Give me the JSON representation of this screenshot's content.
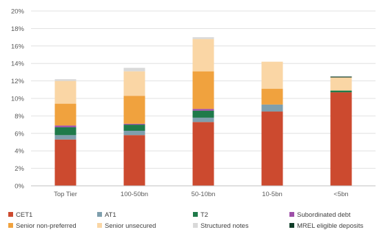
{
  "chart_data": {
    "type": "bar",
    "stacked": true,
    "title": "",
    "xlabel": "",
    "ylabel": "",
    "ylim": [
      0,
      20
    ],
    "y_tick_format": "percent",
    "y_ticks": [
      "0%",
      "2%",
      "4%",
      "6%",
      "8%",
      "10%",
      "12%",
      "14%",
      "16%",
      "18%",
      "20%"
    ],
    "categories": [
      "Top Tier",
      "100-50bn",
      "50-10bn",
      "10-5bn",
      "<5bn"
    ],
    "grid": true,
    "legend_position": "bottom",
    "series": [
      {
        "name": "CET1",
        "color": "#cc4a2f",
        "values": [
          5.3,
          5.8,
          7.3,
          8.5,
          10.7
        ]
      },
      {
        "name": "AT1",
        "color": "#7f9fad",
        "values": [
          0.5,
          0.5,
          0.5,
          0.8,
          0.0
        ]
      },
      {
        "name": "T2",
        "color": "#1f7a4a",
        "values": [
          0.9,
          0.7,
          0.8,
          0.0,
          0.2
        ]
      },
      {
        "name": "Subordinated debt",
        "color": "#9e4fa8",
        "values": [
          0.2,
          0.1,
          0.2,
          0.0,
          0.0
        ]
      },
      {
        "name": "Senior non-preferred",
        "color": "#f0a23e",
        "values": [
          2.5,
          3.2,
          4.3,
          1.8,
          0.0
        ]
      },
      {
        "name": "Senior unsecured",
        "color": "#fad6a5",
        "values": [
          2.6,
          2.8,
          3.7,
          3.1,
          1.5
        ]
      },
      {
        "name": "Structured notes",
        "color": "#d9d9d9",
        "values": [
          0.2,
          0.4,
          0.2,
          0.0,
          0.0
        ]
      },
      {
        "name": "MREL eligible deposits",
        "color": "#0f3d28",
        "values": [
          0.0,
          0.0,
          0.0,
          0.0,
          0.1
        ]
      }
    ]
  }
}
